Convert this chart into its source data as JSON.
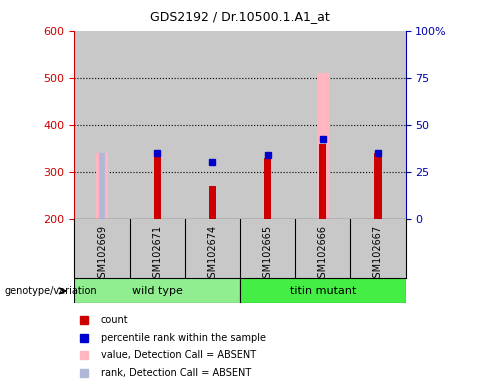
{
  "title": "GDS2192 / Dr.10500.1.A1_at",
  "samples": [
    "GSM102669",
    "GSM102671",
    "GSM102674",
    "GSM102665",
    "GSM102666",
    "GSM102667"
  ],
  "ylim_left": [
    200,
    600
  ],
  "ylim_right": [
    0,
    100
  ],
  "yticks_left": [
    200,
    300,
    400,
    500,
    600
  ],
  "yticks_right": [
    0,
    25,
    50,
    75,
    100
  ],
  "red_bars": [
    null,
    340,
    270,
    330,
    360,
    340
  ],
  "blue_squares": [
    null,
    340,
    320,
    335,
    370,
    340
  ],
  "pink_bars": [
    340,
    null,
    null,
    null,
    510,
    null
  ],
  "lavender_bars": [
    340,
    null,
    null,
    null,
    370,
    null
  ],
  "bar_bottom": 200,
  "red_color": "#cc0000",
  "blue_color": "#0000cc",
  "pink_color": "#ffb6c1",
  "lavender_color": "#b0b8d8",
  "legend_items": [
    {
      "color": "#cc0000",
      "label": "count"
    },
    {
      "color": "#0000cc",
      "label": "percentile rank within the sample"
    },
    {
      "color": "#ffb6c1",
      "label": "value, Detection Call = ABSENT"
    },
    {
      "color": "#b0b8d8",
      "label": "rank, Detection Call = ABSENT"
    }
  ],
  "sample_bg_color": "#c8c8c8",
  "plot_bg_color": "#ffffff",
  "left_axis_color": "#cc0000",
  "right_axis_color": "#0000aa",
  "wt_color": "#90ee90",
  "tm_color": "#44ee44",
  "dotted_yticks": [
    300,
    400,
    500
  ]
}
